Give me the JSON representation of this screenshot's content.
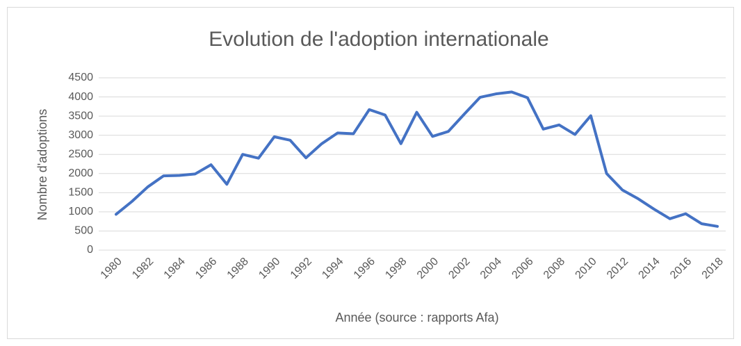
{
  "chart_data": {
    "type": "line",
    "title": "Evolution de l'adoption internationale",
    "x_label": "Année (source : rapports Afa)",
    "y_label": "Nombre d'adoptions",
    "x": [
      1980,
      1981,
      1982,
      1983,
      1984,
      1985,
      1986,
      1987,
      1988,
      1989,
      1990,
      1991,
      1992,
      1993,
      1994,
      1995,
      1996,
      1997,
      1998,
      1999,
      2000,
      2001,
      2002,
      2003,
      2004,
      2005,
      2006,
      2007,
      2008,
      2009,
      2010,
      2011,
      2012,
      2013,
      2014,
      2015,
      2016,
      2017,
      2018
    ],
    "values": [
      935,
      1270,
      1650,
      1940,
      1950,
      1990,
      2230,
      1720,
      2500,
      2400,
      2960,
      2870,
      2410,
      2780,
      3060,
      3040,
      3670,
      3530,
      2780,
      3600,
      2970,
      3100,
      3550,
      3990,
      4080,
      4130,
      3980,
      3160,
      3270,
      3020,
      3510,
      2000,
      1570,
      1340,
      1070,
      820,
      950,
      690,
      620
    ],
    "color": "#4472c4",
    "xlim": [
      1980,
      2018
    ],
    "xticks": [
      1980,
      1982,
      1984,
      1986,
      1988,
      1990,
      1992,
      1994,
      1996,
      1998,
      2000,
      2002,
      2004,
      2006,
      2008,
      2010,
      2012,
      2014,
      2016,
      2018
    ],
    "ylim": [
      0,
      4500
    ],
    "yticks": [
      0,
      500,
      1000,
      1500,
      2000,
      2500,
      3000,
      3500,
      4000,
      4500
    ],
    "grid": true
  }
}
